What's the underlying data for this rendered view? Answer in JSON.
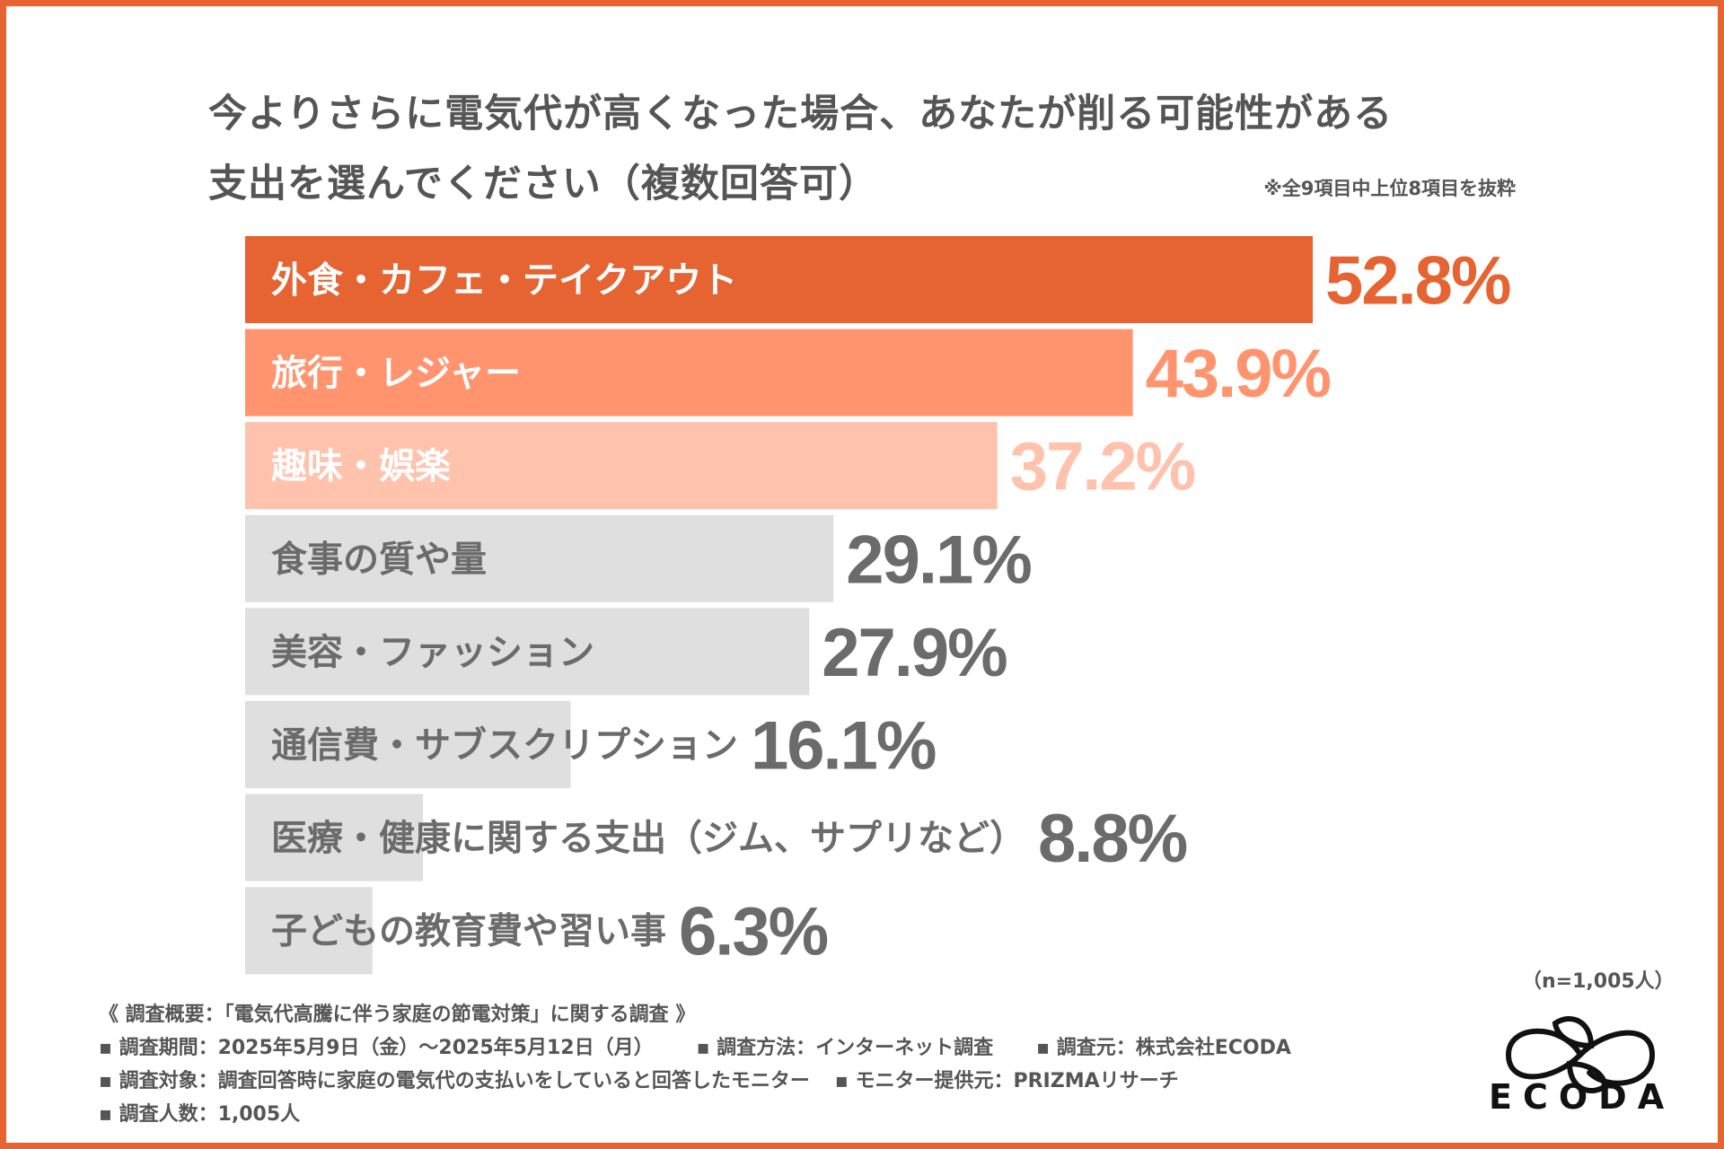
{
  "title_line1": "今よりさらに電気代が高くなった場合、あなたが削る可能性がある",
  "title_line2": "支出を選んでください（複数回答可）",
  "note": "※全9項目中上位8項目を抜粋",
  "sample_size": "（n=1,005人）",
  "logo_text": "ECODA",
  "colors": {
    "frame": "#E66332",
    "top1": "#E66332",
    "top2": "#FF946E",
    "top3": "#FFC2AD",
    "other_bar": "#DFDFDF",
    "other_text": "#6B6B6B"
  },
  "chart_data": {
    "type": "bar",
    "orientation": "horizontal",
    "title": "今よりさらに電気代が高くなった場合、あなたが削る可能性がある支出を選んでください（複数回答可）",
    "xlabel": "",
    "ylabel": "",
    "unit": "%",
    "xlim": [
      0,
      52.8
    ],
    "grid": false,
    "categories": [
      "外食・カフェ・テイクアウト",
      "旅行・レジャー",
      "趣味・娯楽",
      "食事の質や量",
      "美容・ファッション",
      "通信費・サブスクリプション",
      "医療・健康に関する支出（ジム、サプリなど）",
      "子どもの教育費や習い事"
    ],
    "values": [
      52.8,
      43.9,
      37.2,
      29.1,
      27.9,
      16.1,
      8.8,
      6.3
    ],
    "value_labels": [
      "52.8%",
      "43.9%",
      "37.2%",
      "29.1%",
      "27.9%",
      "16.1%",
      "8.8%",
      "6.3%"
    ]
  },
  "footer": {
    "heading": "《 調査概要：「電気代高騰に伴う家庭の節電対策」に関する調査 》",
    "period": "▪ 調査期間：2025年5月9日（金）～2025年5月12日（月）",
    "method": "▪ 調査方法：インターネット調査",
    "source": "▪ 調査元：株式会社ECODA",
    "target": "▪ 調査対象：調査回答時に家庭の電気代の支払いをしていると回答したモニター",
    "provider": "▪ モニター提供元：PRIZMAリサーチ",
    "count": "▪ 調査人数：1,005人"
  }
}
